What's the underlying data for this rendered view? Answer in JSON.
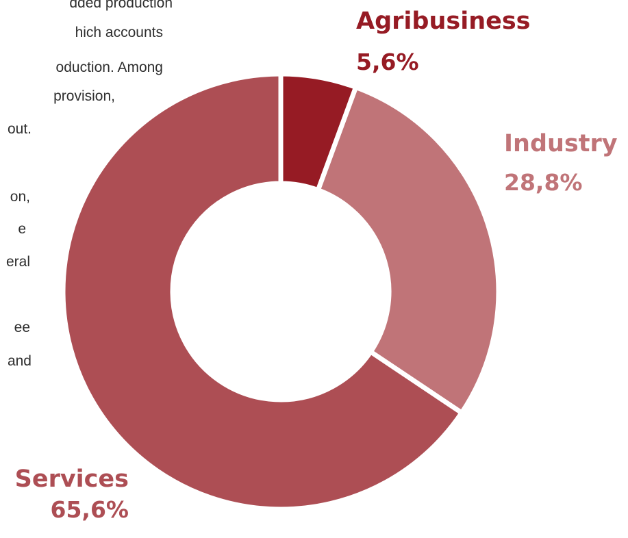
{
  "background_text": [
    "dded production",
    "hich accounts",
    "oduction. Among",
    "provision,",
    "out.",
    "on,",
    "e",
    "eral",
    "ee",
    "and"
  ],
  "chart_data": {
    "type": "pie",
    "variant": "donut",
    "categories": [
      "Agribusiness",
      "Industry",
      "Services"
    ],
    "values": [
      5.6,
      28.8,
      65.6
    ],
    "value_labels": [
      "5,6%",
      "28,8%",
      "65,6%"
    ],
    "colors": [
      "#961b24",
      "#c07478",
      "#ad4e54"
    ],
    "title": "",
    "legend": "none"
  }
}
